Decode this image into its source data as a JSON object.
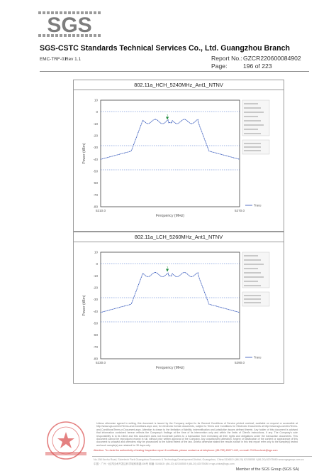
{
  "logo_text": "SGS",
  "header": {
    "company": "SGS-CSTC Standards Technical Services Co., Ltd. Guangzhou Branch",
    "form_code": "EMC-TRF-01",
    "revision": "Rev 1.1",
    "report_no_label": "Report No.:",
    "report_no": "GZCR220600084902",
    "page_label": "Page:",
    "page_value": "196 of 223"
  },
  "plots": [
    {
      "title": "802.11a_HCH_5240MHz_Ant1_NTNV",
      "xlabel": "Frequency (MHz)",
      "ylabel": "Power (dBm)",
      "x_start": "5210.0",
      "x_end": "5270.0",
      "y_ticks": [
        "10",
        "0",
        "-10",
        "-20",
        "-30",
        "-40",
        "-50",
        "-60",
        "-70",
        "-80"
      ],
      "legend": "Trace",
      "marker": "1"
    },
    {
      "title": "802.11a_LCH_5260MHz_Ant1_NTNV",
      "xlabel": "Frequency (MHz)",
      "ylabel": "Power (dBm)",
      "x_start": "5230.0",
      "x_end": "5290.0",
      "y_ticks": [
        "10",
        "0",
        "-10",
        "-20",
        "-30",
        "-40",
        "-50",
        "-60",
        "-70",
        "-80"
      ],
      "legend": "Trace",
      "marker": "1"
    }
  ],
  "notice": "Unless otherwise agreed in writing, this document is issued by the Company subject to its General Conditions of Service printed overleaf, available on request or accessible at http://www.sgs.com/en/Terms-and-Conditions.aspx and, for electronic format documents, subject to Terms and Conditions for Electronic Documents at http://www.sgs.com/en/Terms-and-Conditions/Terms-e-Document.aspx. Attention is drawn to the limitation of liability, indemnification and jurisdiction issues defined therein. Any holder of this document is advised that information contained hereon reflects the Company's findings at the time of its intervention only and within the limits of Client's instructions, if any. The Company's sole responsibility is to its Client and this document does not exonerate parties to a transaction from exercising all their rights and obligations under the transaction documents. This document cannot be reproduced except in full, without prior written approval of the Company. Any unauthorized alteration, forgery or falsification of the content or appearance of this document is unlawful and offenders may be prosecuted to the fullest extent of the law. Unless otherwise stated the results shown in this test report refer only to the sample(s) tested and such sample(s) are retained for 30 days only.",
  "attention": "Attention: To check the authenticity of testing /inspection report & certificate, please contact us at telephone: (86-755) 8307 1443, or email: CN.Doccheck@sgs.com",
  "address_en": "No.198 Kezhu Road, Scientech Park Guangzhou Economic & Technology Development District, Guangzhou, China 510663   t (86-20) 82155555   f (86-20) 82075080   www.sgsgroup.com.cn",
  "address_cn": "中国 · 广州 · 经济技术开发区科学城科珠路198号   邮编: 510663   t (86-20) 82155555   f (86-20) 82075080   e sgs.china@sgs.com",
  "member": "Member of the SGS Group (SGS SA)"
}
